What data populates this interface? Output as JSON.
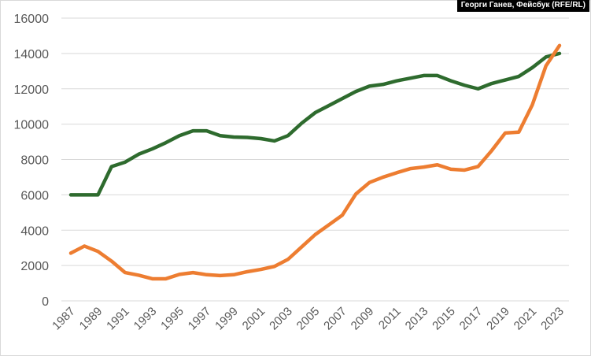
{
  "credit": "Георги Ганев, Фейсбук (RFE/RL)",
  "chart_data": {
    "type": "line",
    "title": "",
    "xlabel": "",
    "ylabel": "",
    "x": [
      1987,
      1988,
      1989,
      1990,
      1991,
      1992,
      1993,
      1994,
      1995,
      1996,
      1997,
      1998,
      1999,
      2000,
      2001,
      2002,
      2003,
      2004,
      2005,
      2006,
      2007,
      2008,
      2009,
      2010,
      2011,
      2012,
      2013,
      2014,
      2015,
      2016,
      2017,
      2018,
      2019,
      2020,
      2021,
      2022,
      2023
    ],
    "x_tick_labels": [
      "1987",
      "1989",
      "1991",
      "1993",
      "1995",
      "1997",
      "1999",
      "2001",
      "2003",
      "2005",
      "2007",
      "2009",
      "2011",
      "2013",
      "2015",
      "2017",
      "2019",
      "2021",
      "2023"
    ],
    "ylim": [
      0,
      16000
    ],
    "y_ticks": [
      0,
      2000,
      4000,
      6000,
      8000,
      10000,
      12000,
      14000,
      16000
    ],
    "grid": true,
    "legend": "none",
    "series": [
      {
        "color": "#2e6b2e",
        "values": [
          6000,
          6000,
          6000,
          7600,
          7850,
          8300,
          8600,
          8950,
          9350,
          9620,
          9620,
          9350,
          9270,
          9250,
          9180,
          9050,
          9350,
          10050,
          10650,
          11050,
          11450,
          11850,
          12150,
          12250,
          12450,
          12600,
          12750,
          12750,
          12450,
          12200,
          12000,
          12300,
          12500,
          12700,
          13200,
          13800,
          14000
        ]
      },
      {
        "color": "#ed7d31",
        "values": [
          2700,
          3100,
          2800,
          2250,
          1600,
          1450,
          1250,
          1250,
          1500,
          1600,
          1480,
          1430,
          1480,
          1650,
          1780,
          1950,
          2350,
          3050,
          3750,
          4300,
          4850,
          6050,
          6700,
          7000,
          7250,
          7480,
          7570,
          7700,
          7450,
          7400,
          7600,
          8500,
          9500,
          9550,
          11100,
          13300,
          14450
        ]
      }
    ]
  }
}
